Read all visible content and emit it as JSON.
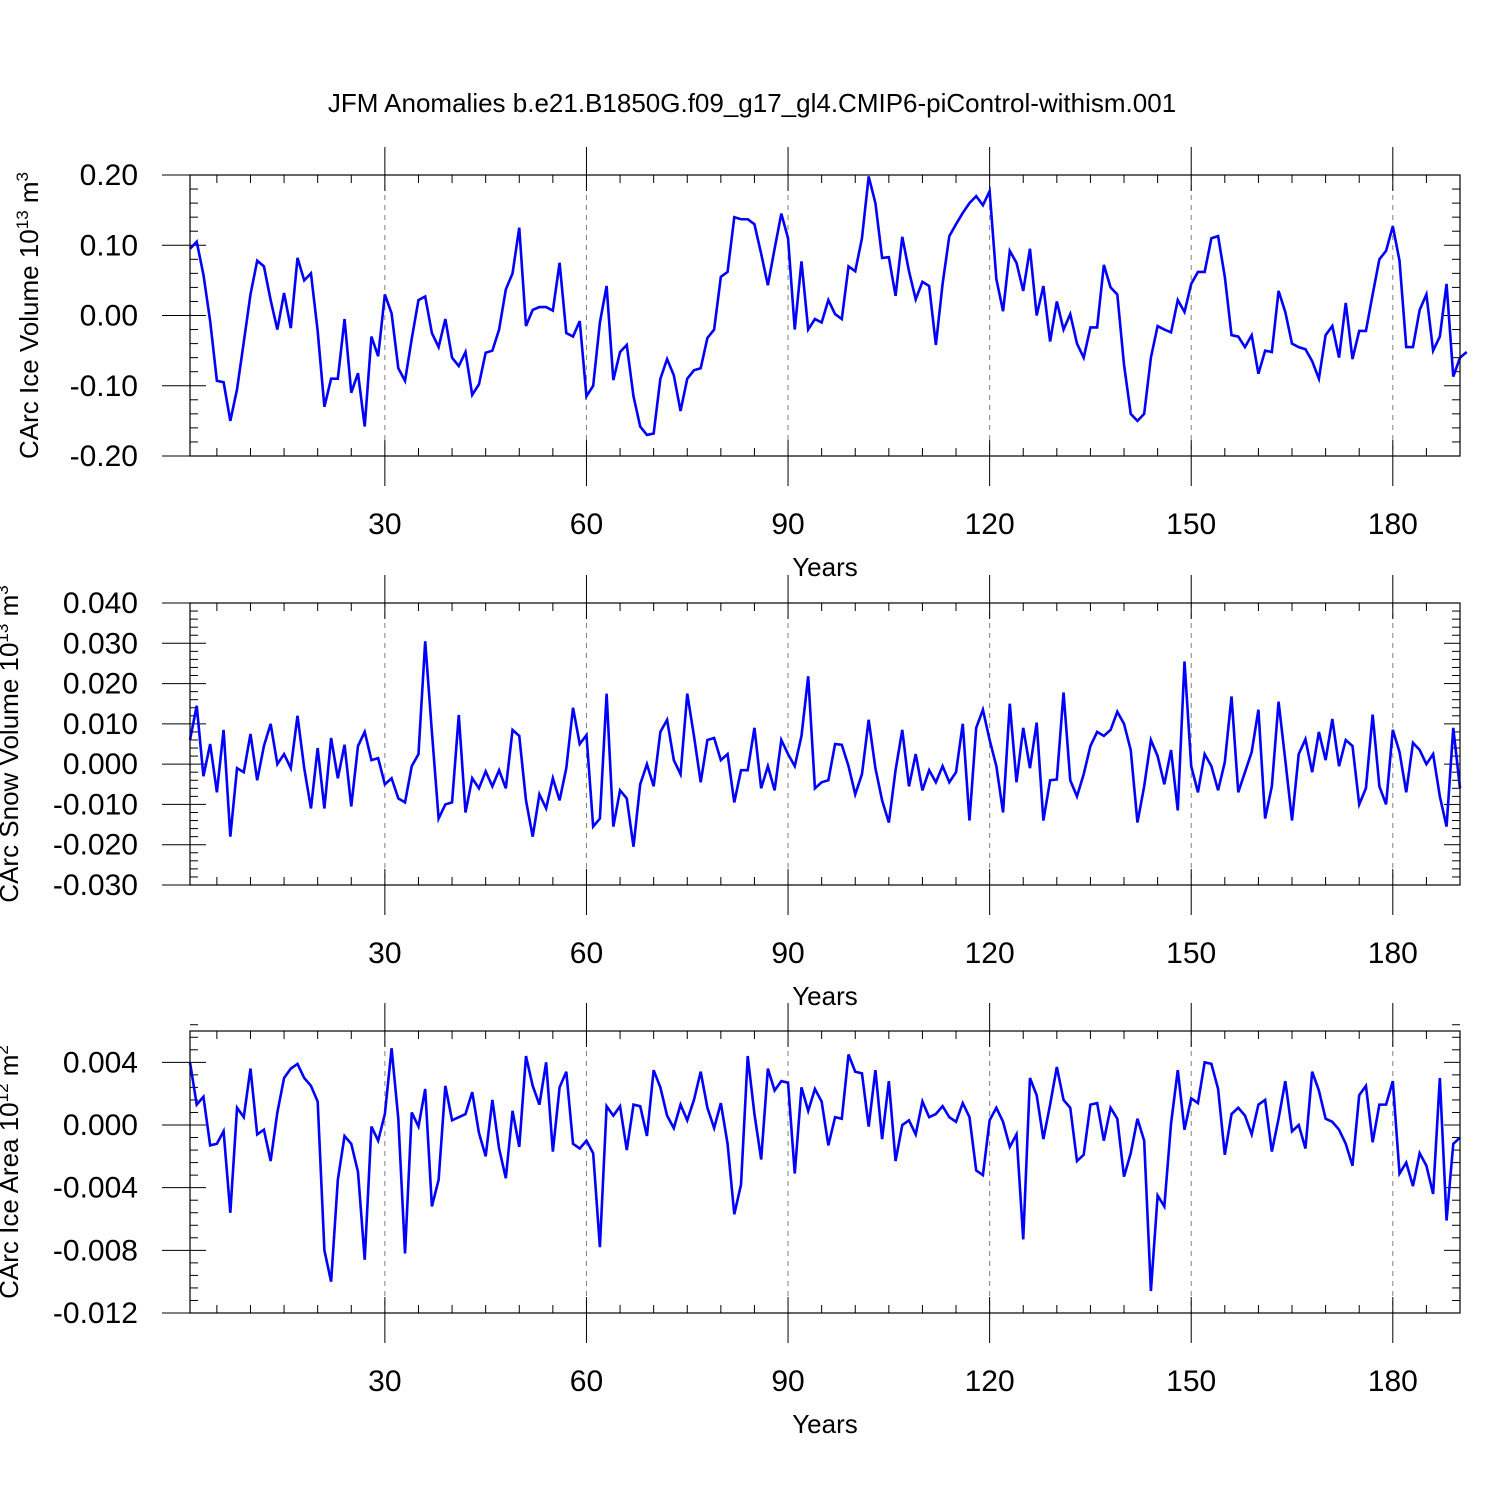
{
  "title": "JFM Anomalies b.e21.B1850G.f09_g17_gl4.CMIP6-piControl-withism.001",
  "chart_data": [
    {
      "type": "line",
      "ylabel": "CArc Ice Volume 10",
      "ylabel_exp": "13",
      "ylabel_unit": " m",
      "ylabel_unit_exp": "3",
      "xlabel": "Years",
      "xlim": [
        1,
        190
      ],
      "ylim": [
        -0.2,
        0.2
      ],
      "xticks": [
        30,
        60,
        90,
        120,
        150,
        180
      ],
      "xtick_labels": [
        "30",
        "60",
        "90",
        "120",
        "150",
        "180"
      ],
      "yticks": [
        -0.2,
        -0.1,
        0.0,
        0.1,
        0.2
      ],
      "ytick_labels": [
        "-0.20",
        "-0.10",
        "0.00",
        "0.10",
        "0.20"
      ],
      "yminor_step": 0.02,
      "grid": "vertical dashed at major x ticks",
      "series": [
        {
          "name": "CArc Ice Volume",
          "color": "#0000ff",
          "x_start": 1,
          "values": [
            0.095,
            0.105,
            0.058,
            -0.008,
            -0.093,
            -0.095,
            -0.15,
            -0.105,
            -0.038,
            0.03,
            0.078,
            0.07,
            0.022,
            -0.02,
            0.032,
            -0.018,
            0.082,
            0.05,
            0.06,
            -0.022,
            -0.13,
            -0.09,
            -0.09,
            -0.005,
            -0.11,
            -0.082,
            -0.158,
            -0.03,
            -0.058,
            0.03,
            0.003,
            -0.075,
            -0.093,
            -0.033,
            0.022,
            0.027,
            -0.025,
            -0.045,
            -0.005,
            -0.06,
            -0.072,
            -0.052,
            -0.113,
            -0.098,
            -0.053,
            -0.05,
            -0.02,
            0.037,
            0.06,
            0.125,
            -0.015,
            0.008,
            0.012,
            0.012,
            0.007,
            0.075,
            -0.025,
            -0.03,
            -0.008,
            -0.115,
            -0.1,
            -0.01,
            0.042,
            -0.092,
            -0.052,
            -0.042,
            -0.115,
            -0.158,
            -0.17,
            -0.168,
            -0.09,
            -0.062,
            -0.085,
            -0.136,
            -0.09,
            -0.078,
            -0.075,
            -0.032,
            -0.02,
            0.055,
            0.062,
            0.14,
            0.137,
            0.137,
            0.13,
            0.088,
            0.043,
            0.095,
            0.145,
            0.11,
            -0.02,
            0.077,
            -0.02,
            -0.005,
            -0.01,
            0.022,
            0.002,
            -0.005,
            0.07,
            0.063,
            0.11,
            0.198,
            0.16,
            0.082,
            0.083,
            0.028,
            0.112,
            0.063,
            0.023,
            0.048,
            0.042,
            -0.042,
            0.045,
            0.113,
            0.13,
            0.146,
            0.16,
            0.17,
            0.157,
            0.177,
            0.052,
            0.006,
            0.092,
            0.075,
            0.035,
            0.095,
            0.0,
            0.042,
            -0.037,
            0.02,
            -0.02,
            0.002,
            -0.04,
            -0.06,
            -0.017,
            -0.017,
            0.072,
            0.04,
            0.03,
            -0.07,
            -0.14,
            -0.15,
            -0.14,
            -0.06,
            -0.015,
            -0.02,
            -0.024,
            0.022,
            0.005,
            0.045,
            0.062,
            0.062,
            0.11,
            0.113,
            0.055,
            -0.028,
            -0.03,
            -0.045,
            -0.028,
            -0.083,
            -0.05,
            -0.052,
            0.035,
            0.005,
            -0.04,
            -0.045,
            -0.048,
            -0.065,
            -0.09,
            -0.028,
            -0.015,
            -0.06,
            0.018,
            -0.062,
            -0.022,
            -0.022,
            0.03,
            0.08,
            0.092,
            0.127,
            0.078,
            -0.045,
            -0.045,
            0.008,
            0.03,
            -0.05,
            -0.03,
            0.045,
            -0.087,
            -0.06,
            -0.052
          ]
        }
      ]
    },
    {
      "type": "line",
      "ylabel": "CArc Snow Volume 10",
      "ylabel_exp": "13",
      "ylabel_unit": " m",
      "ylabel_unit_exp": "3",
      "xlabel": "Years",
      "xlim": [
        1,
        190
      ],
      "ylim": [
        -0.03,
        0.04
      ],
      "xticks": [
        30,
        60,
        90,
        120,
        150,
        180
      ],
      "xtick_labels": [
        "30",
        "60",
        "90",
        "120",
        "150",
        "180"
      ],
      "yticks": [
        -0.03,
        -0.02,
        -0.01,
        0.0,
        0.01,
        0.02,
        0.03,
        0.04
      ],
      "ytick_labels": [
        "-0.030",
        "-0.020",
        "-0.010",
        "0.000",
        "0.010",
        "0.020",
        "0.030",
        "0.040"
      ],
      "yminor_step": 0.002,
      "grid": "vertical dashed at major x ticks",
      "series": [
        {
          "name": "CArc Snow Volume",
          "color": "#0000ff",
          "x_start": 1,
          "values": [
            0.006,
            0.0145,
            -0.003,
            0.005,
            -0.007,
            0.0085,
            -0.018,
            -0.001,
            -0.002,
            0.0075,
            -0.004,
            0.0045,
            0.01,
            0.0,
            0.0025,
            -0.001,
            0.012,
            -0.001,
            -0.011,
            0.004,
            -0.011,
            0.0065,
            -0.0035,
            0.0048,
            -0.0105,
            0.0045,
            0.008,
            0.001,
            0.0015,
            -0.005,
            -0.0035,
            -0.0085,
            -0.0095,
            -0.0005,
            0.0025,
            0.0305,
            0.008,
            -0.0135,
            -0.01,
            -0.0095,
            0.0122,
            -0.012,
            -0.0035,
            -0.006,
            -0.0018,
            -0.0055,
            -0.0015,
            -0.006,
            0.0085,
            0.007,
            -0.009,
            -0.018,
            -0.0075,
            -0.011,
            -0.0035,
            -0.009,
            -0.001,
            0.014,
            0.005,
            0.0072,
            -0.0155,
            -0.0135,
            0.0175,
            -0.0155,
            -0.0065,
            -0.0085,
            -0.0205,
            -0.005,
            0.0,
            -0.0055,
            0.008,
            0.011,
            0.001,
            -0.0025,
            0.0175,
            0.007,
            -0.0045,
            0.006,
            0.0065,
            0.001,
            0.0025,
            -0.0095,
            -0.0015,
            -0.0015,
            0.009,
            -0.006,
            -0.0005,
            -0.0065,
            0.006,
            0.0025,
            -0.0005,
            0.007,
            0.0218,
            -0.006,
            -0.0045,
            -0.004,
            0.005,
            0.0048,
            -0.0005,
            -0.0075,
            -0.0025,
            0.011,
            -0.001,
            -0.009,
            -0.0145,
            -0.0015,
            0.0085,
            -0.0055,
            0.0025,
            -0.0065,
            -0.0015,
            -0.0045,
            -0.0005,
            -0.0045,
            -0.002,
            0.01,
            -0.014,
            0.009,
            0.0135,
            0.006,
            -0.0005,
            -0.012,
            0.015,
            -0.0045,
            0.009,
            -0.001,
            0.0103,
            -0.014,
            -0.004,
            -0.0038,
            0.0178,
            -0.004,
            -0.008,
            -0.0025,
            0.0045,
            0.008,
            0.007,
            0.0085,
            0.013,
            0.01,
            0.0035,
            -0.0145,
            -0.0055,
            0.006,
            0.002,
            -0.005,
            0.0035,
            -0.0115,
            0.0255,
            -0.0005,
            -0.007,
            0.0025,
            -0.0005,
            -0.0065,
            0.0005,
            0.0168,
            -0.007,
            -0.002,
            0.003,
            0.0135,
            -0.0135,
            -0.0055,
            0.0155,
            0.001,
            -0.014,
            0.0025,
            0.0062,
            -0.002,
            0.008,
            0.001,
            0.0112,
            -0.0005,
            0.006,
            0.0045,
            -0.01,
            -0.006,
            0.0123,
            -0.0055,
            -0.01,
            0.0085,
            0.003,
            -0.007,
            0.0053,
            0.0035,
            0.0,
            0.0025,
            -0.008,
            -0.0155,
            0.009,
            -0.006
          ]
        }
      ]
    },
    {
      "type": "line",
      "ylabel": "CArc Ice Area 10",
      "ylabel_exp": "12",
      "ylabel_unit": " m",
      "ylabel_unit_exp": "2",
      "xlabel": "Years",
      "xlim": [
        1,
        190
      ],
      "ylim": [
        -0.012,
        0.006
      ],
      "xticks": [
        30,
        60,
        90,
        120,
        150,
        180
      ],
      "xtick_labels": [
        "30",
        "60",
        "90",
        "120",
        "150",
        "180"
      ],
      "yticks": [
        -0.012,
        -0.008,
        -0.004,
        0.0,
        0.004
      ],
      "ytick_labels": [
        "-0.012",
        "-0.008",
        "-0.004",
        "0.000",
        "0.004"
      ],
      "yminor_step": 0.0008,
      "grid": "vertical dashed at major x ticks",
      "series": [
        {
          "name": "CArc Ice Area",
          "color": "#0000ff",
          "x_start": 1,
          "values": [
            0.004,
            0.0013,
            0.0018,
            -0.0013,
            -0.0012,
            -0.0004,
            -0.0056,
            0.0011,
            0.0005,
            0.0036,
            -0.0006,
            -0.0003,
            -0.0023,
            0.0008,
            0.003,
            0.0036,
            0.0039,
            0.003,
            0.0025,
            0.0015,
            -0.008,
            -0.01,
            -0.0035,
            -0.0007,
            -0.0012,
            -0.003,
            -0.0086,
            -0.0001,
            -0.001,
            0.0007,
            0.0049,
            0.0004,
            -0.0082,
            0.0008,
            -0.0001,
            0.0023,
            -0.0052,
            -0.0035,
            0.0025,
            0.0003,
            0.0005,
            0.0007,
            0.0021,
            -0.0005,
            -0.002,
            0.0016,
            -0.0015,
            -0.0034,
            0.0009,
            -0.0014,
            0.0044,
            0.0025,
            0.0013,
            0.004,
            -0.0017,
            0.0024,
            0.0034,
            -0.0012,
            -0.0015,
            -0.001,
            -0.0018,
            -0.0078,
            0.0012,
            0.0006,
            0.0012,
            -0.0016,
            0.0013,
            0.0012,
            -0.0007,
            0.0035,
            0.0024,
            0.0006,
            -0.0002,
            0.0013,
            0.0003,
            0.0016,
            0.0034,
            0.0011,
            -0.0002,
            0.0014,
            -0.0012,
            -0.0057,
            -0.0038,
            0.0044,
            0.0007,
            -0.0022,
            0.0036,
            0.0022,
            0.0028,
            0.0027,
            -0.0031,
            0.0024,
            0.0009,
            0.0023,
            0.0015,
            -0.0013,
            0.0005,
            0.0004,
            0.0045,
            0.0034,
            0.0033,
            -0.0001,
            0.0035,
            -0.0009,
            0.0028,
            -0.0023,
            0.0,
            0.0003,
            -0.0006,
            0.0015,
            0.0005,
            0.0007,
            0.0012,
            0.0005,
            0.0002,
            0.0014,
            0.0005,
            -0.0029,
            -0.0032,
            0.0003,
            0.0011,
            0.0002,
            -0.0014,
            -0.0006,
            -0.0073,
            0.003,
            0.0019,
            -0.0009,
            0.0013,
            0.0037,
            0.0016,
            0.0011,
            -0.0023,
            -0.0019,
            0.0013,
            0.0014,
            -0.001,
            0.0011,
            0.0004,
            -0.0033,
            -0.0018,
            0.0004,
            -0.001,
            -0.0106,
            -0.0045,
            -0.0052,
            0.0001,
            0.0035,
            -0.0003,
            0.0017,
            0.0014,
            0.004,
            0.0039,
            0.0023,
            -0.0019,
            0.0007,
            0.0011,
            0.0006,
            -0.0006,
            0.0013,
            0.0016,
            -0.0017,
            0.0004,
            0.0028,
            -0.0004,
            0.0,
            -0.0015,
            0.0034,
            0.0022,
            0.0004,
            0.0002,
            -0.0003,
            -0.0012,
            -0.0026,
            0.0019,
            0.0025,
            -0.0011,
            0.0013,
            0.0013,
            0.0028,
            -0.0031,
            -0.0024,
            -0.0039,
            -0.0018,
            -0.0026,
            -0.0044,
            0.003,
            -0.0061,
            -0.0012,
            -0.0008
          ]
        }
      ]
    }
  ]
}
